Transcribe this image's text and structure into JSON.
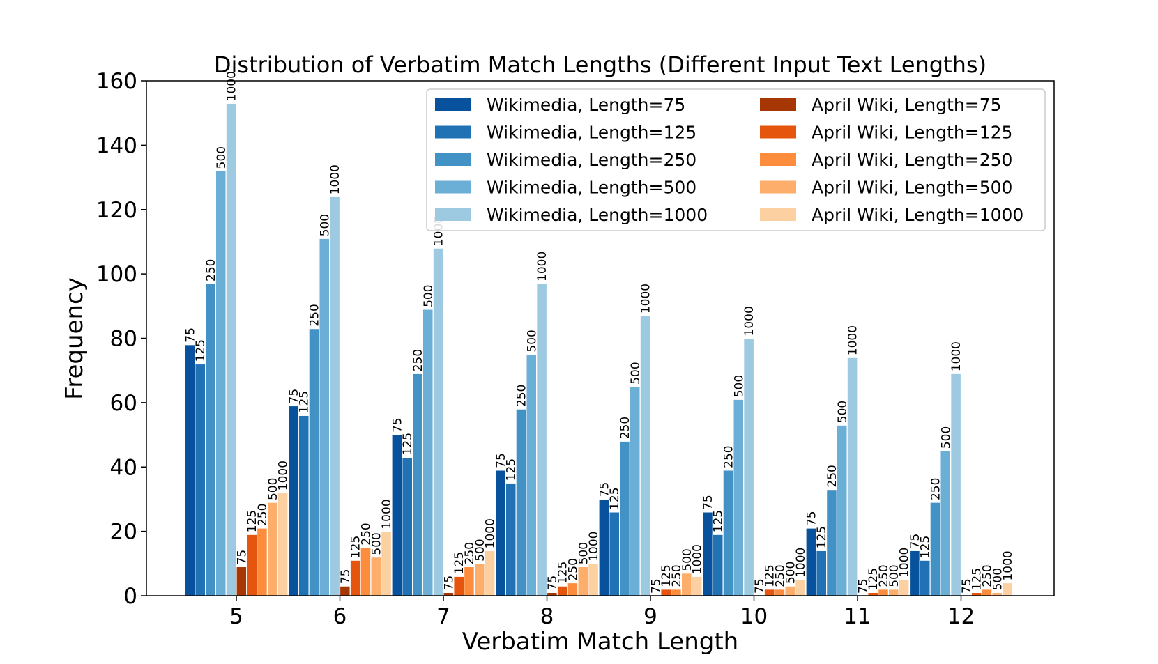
{
  "chart_data": {
    "type": "bar",
    "title": "Distribution of Verbatim Match Lengths (Different Input Text Lengths)",
    "xlabel": "Verbatim Match Length",
    "ylabel": "Frequency",
    "ylim": [
      0,
      160
    ],
    "yticks": [
      0,
      20,
      40,
      60,
      80,
      100,
      120,
      140,
      160
    ],
    "categories": [
      "5",
      "6",
      "7",
      "8",
      "9",
      "10",
      "11",
      "12"
    ],
    "legend_position": "top-right",
    "grid": false,
    "series": [
      {
        "name": "Wikimedia, Length=75",
        "label": "75",
        "color": "#08519c",
        "values": [
          78,
          59,
          50,
          39,
          30,
          26,
          21,
          14
        ]
      },
      {
        "name": "Wikimedia, Length=125",
        "label": "125",
        "color": "#2171b5",
        "values": [
          72,
          56,
          43,
          35,
          26,
          19,
          14,
          11
        ]
      },
      {
        "name": "Wikimedia, Length=250",
        "label": "250",
        "color": "#4292c6",
        "values": [
          97,
          83,
          69,
          58,
          48,
          39,
          33,
          29
        ]
      },
      {
        "name": "Wikimedia, Length=500",
        "label": "500",
        "color": "#6baed6",
        "values": [
          132,
          111,
          89,
          75,
          65,
          61,
          53,
          45
        ]
      },
      {
        "name": "Wikimedia, Length=1000",
        "label": "1000",
        "color": "#9ecae1",
        "values": [
          153,
          124,
          108,
          97,
          87,
          80,
          74,
          69
        ]
      },
      {
        "name": "April Wiki, Length=75",
        "label": "75",
        "color": "#a63603",
        "values": [
          9,
          3,
          1,
          1,
          0,
          0,
          0,
          0
        ]
      },
      {
        "name": "April Wiki, Length=125",
        "label": "125",
        "color": "#e6550d",
        "values": [
          19,
          11,
          6,
          3,
          2,
          2,
          1,
          1
        ]
      },
      {
        "name": "April Wiki, Length=250",
        "label": "250",
        "color": "#fd8d3c",
        "values": [
          21,
          15,
          9,
          4,
          2,
          2,
          2,
          2
        ]
      },
      {
        "name": "April Wiki, Length=500",
        "label": "500",
        "color": "#fdae6b",
        "values": [
          29,
          12,
          10,
          9,
          7,
          3,
          2,
          1
        ]
      },
      {
        "name": "April Wiki, Length=1000",
        "label": "1000",
        "color": "#fdd0a2",
        "values": [
          32,
          20,
          14,
          10,
          6,
          5,
          5,
          4
        ]
      }
    ]
  }
}
